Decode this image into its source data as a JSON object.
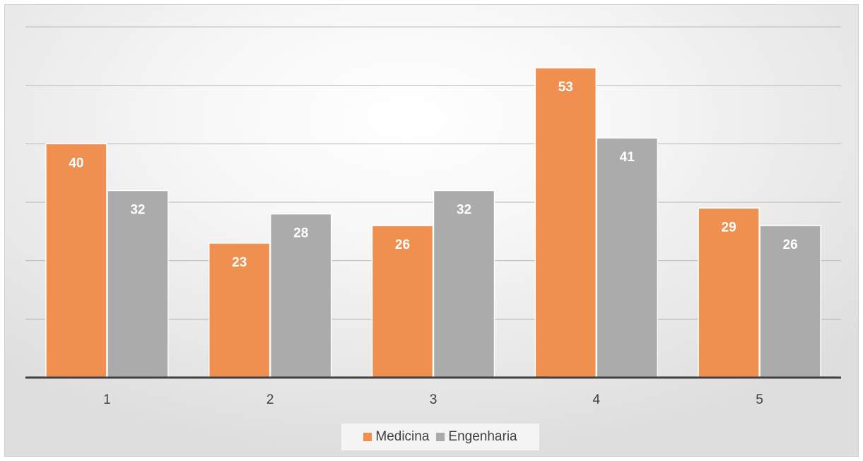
{
  "chart_data": {
    "type": "bar",
    "title": "",
    "xlabel": "",
    "ylabel": "",
    "categories": [
      "1",
      "2",
      "3",
      "4",
      "5"
    ],
    "series": [
      {
        "name": "Medicina",
        "values": [
          40,
          23,
          26,
          53,
          29
        ],
        "color": "#ef9050"
      },
      {
        "name": "Engenharia",
        "values": [
          32,
          28,
          32,
          41,
          26
        ],
        "color": "#ababab"
      }
    ],
    "ylim": [
      0,
      60
    ],
    "ygrid_step": 10,
    "grid": true,
    "show_y_ticks": false,
    "data_labels": true,
    "legend_position": "bottom"
  }
}
